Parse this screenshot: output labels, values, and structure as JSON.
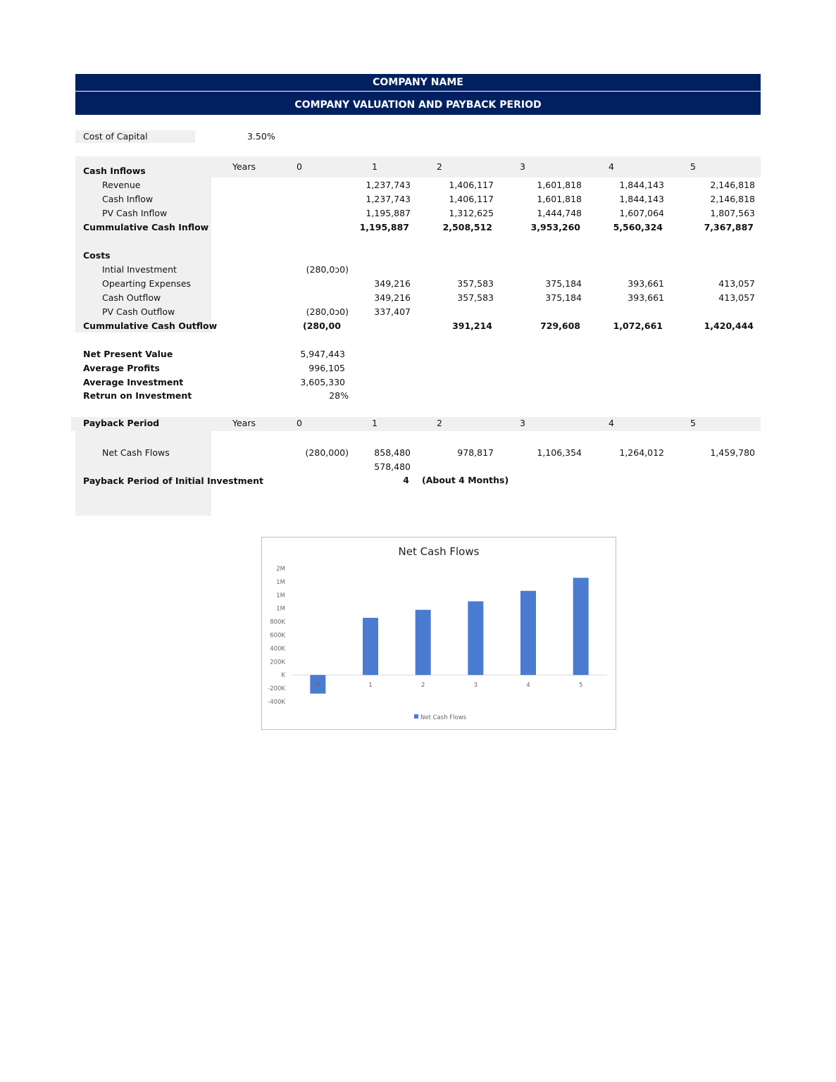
{
  "header": {
    "company": "COMPANY NAME",
    "title": "COMPANY VALUATION AND PAYBACK PERIOD"
  },
  "cost_of_capital": {
    "label": "Cost of Capital",
    "value": "3.50%"
  },
  "years_label": "Years",
  "years": [
    "0",
    "1",
    "2",
    "3",
    "4",
    "5"
  ],
  "inflows": {
    "heading": "Cash Inflows",
    "rows": [
      {
        "label": "Revenue",
        "values": [
          "",
          "1,237,743",
          "1,406,117",
          "1,601,818",
          "1,844,143",
          "2,146,818"
        ]
      },
      {
        "label": "Cash Inflow",
        "values": [
          "",
          "1,237,743",
          "1,406,117",
          "1,601,818",
          "1,844,143",
          "2,146,818"
        ]
      },
      {
        "label": "PV Cash Inflow",
        "values": [
          "",
          "1,195,887",
          "1,312,625",
          "1,444,748",
          "1,607,064",
          "1,807,563"
        ]
      }
    ],
    "total": {
      "label": "Cummulative Cash Inflow",
      "values": [
        "",
        "1,195,887",
        "2,508,512",
        "3,953,260",
        "5,560,324",
        "7,367,887"
      ]
    }
  },
  "costs": {
    "heading": "Costs",
    "rows": [
      {
        "label": "Intial Investment",
        "values": [
          "(280,0ɔ0)",
          "",
          "",
          "",
          "",
          ""
        ]
      },
      {
        "label": "Opearting Expenses",
        "values": [
          "",
          "349,216",
          "357,583",
          "375,184",
          "393,661",
          "413,057"
        ]
      },
      {
        "label": "Cash Outflow",
        "values": [
          "",
          "349,216",
          "357,583",
          "375,184",
          "393,661",
          "413,057"
        ]
      },
      {
        "label": "PV Cash Outflow",
        "values": [
          "(280,0ɔ0)",
          "337,407",
          "",
          "",
          "",
          ""
        ]
      }
    ],
    "total": {
      "label": "Cummulative  Cash Outflow",
      "values": [
        "(280,00",
        "",
        "391,214",
        "729,608",
        "1,072,661",
        "1,420,444"
      ]
    }
  },
  "metrics": [
    {
      "label": "Net Present Value",
      "value": "5,947,443"
    },
    {
      "label": "Average Profits",
      "value": "996,105"
    },
    {
      "label": "Average Investment",
      "value": "3,605,330"
    },
    {
      "label": "Retrun on Investment",
      "value": "28%"
    }
  ],
  "payback": {
    "heading": "Payback Period",
    "net_cash_flows_label": "Net Cash Flows",
    "net_cash_flows": [
      "(280,000)",
      "858,480",
      "978,817",
      "1,106,354",
      "1,264,012",
      "1,459,780"
    ],
    "extra_value": "578,480",
    "result_label": "Payback Period of Initial Investment",
    "result_value": "4",
    "result_note": "(About 4  Months)"
  },
  "chart_data": {
    "type": "bar",
    "title": "Net Cash Flows",
    "categories": [
      "0",
      "1",
      "2",
      "3",
      "4",
      "5"
    ],
    "series": [
      {
        "name": "Net Cash Flows",
        "values": [
          -280000,
          858480,
          978817,
          1106354,
          1264012,
          1459780
        ],
        "color": "#4a7bd1"
      }
    ],
    "ytick_labels": [
      "2M",
      "1M",
      "1M",
      "1M",
      "800K",
      "600K",
      "400K",
      "200K",
      "K",
      "-200K",
      "-400K"
    ],
    "ylim": [
      -400000,
      1600000
    ],
    "legend": "bottom",
    "grid": false
  }
}
